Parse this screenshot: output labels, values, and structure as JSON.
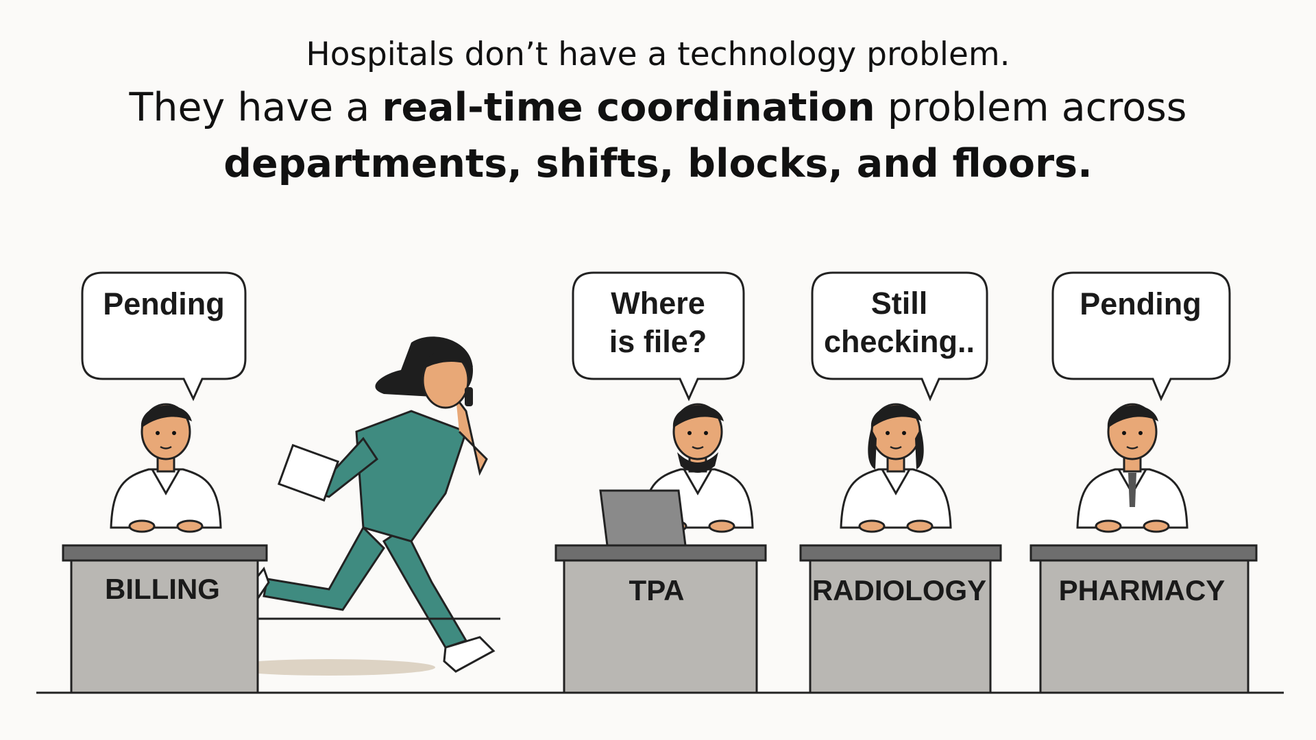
{
  "headline": {
    "line1": "Hospitals don’t have a technology problem.",
    "line2_pre": "They have a ",
    "line2_bold": "real-time coordination",
    "line2_post": " problem across",
    "line3": "departments, shifts, blocks, and floors."
  },
  "desks": [
    {
      "label": "BILLING",
      "speech": [
        "Pending"
      ]
    },
    {
      "label": "TPA",
      "speech": [
        "Where",
        "is file?"
      ]
    },
    {
      "label": "RADIOLOGY",
      "speech": [
        "Still",
        "checking.."
      ]
    },
    {
      "label": "PHARMACY",
      "speech": [
        "Pending"
      ]
    }
  ],
  "colors": {
    "background": "#fbfaf8",
    "desk": "#b9b7b3",
    "desk_top": "#6e6e6e",
    "scrubs": "#3f8b80",
    "skin": "#e8a877"
  }
}
